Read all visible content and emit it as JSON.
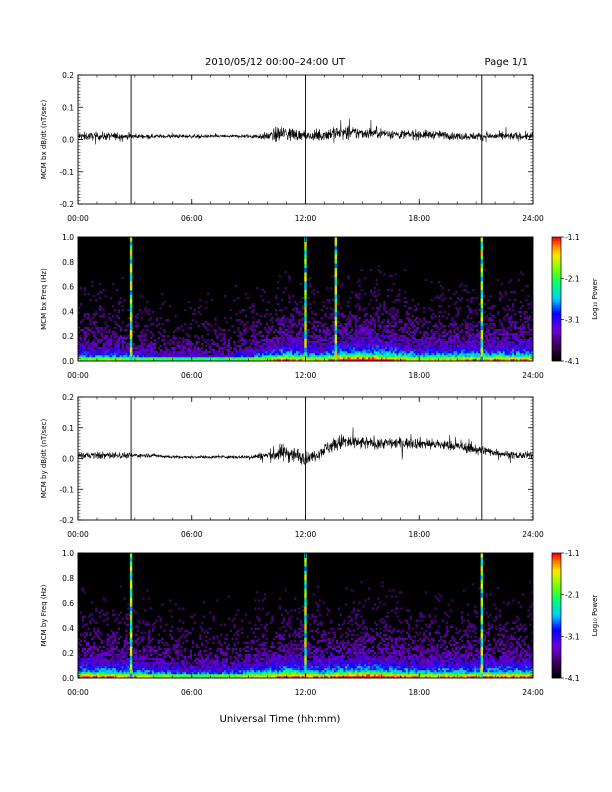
{
  "header": {
    "title": "2010/05/12  00:00–24:00 UT",
    "page": "Page 1/1"
  },
  "xlabel": "Universal Time (hh:mm)",
  "chart_data": [
    {
      "type": "line",
      "ylabel": "MCM bx dB/dt (nT/sec)",
      "xlim": [
        0,
        24
      ],
      "xticks": [
        "00:00",
        "06:00",
        "12:00",
        "18:00",
        "24:00"
      ],
      "ylim": [
        -0.2,
        0.2
      ],
      "yticks": [
        "-0.2",
        "-0.1",
        "0.0",
        "0.1",
        "0.2"
      ],
      "markers_hours": [
        2.8,
        12.0,
        21.3
      ],
      "series": [
        {
          "x": [
            0,
            1,
            2,
            3,
            4,
            5,
            6,
            7,
            8,
            9,
            10,
            10.5,
            11,
            11.5,
            12,
            12.5,
            13,
            13.5,
            14,
            14.5,
            15,
            16,
            17,
            18,
            19,
            20,
            21,
            22,
            23,
            24
          ],
          "y_mean": [
            0.01,
            0.01,
            0.01,
            0.01,
            0.01,
            0.01,
            0.01,
            0.01,
            0.01,
            0.01,
            0.01,
            0.015,
            0.02,
            0.015,
            0.01,
            0.01,
            0.015,
            0.02,
            0.02,
            0.02,
            0.02,
            0.02,
            0.015,
            0.015,
            0.015,
            0.01,
            0.01,
            0.01,
            0.01,
            0.01
          ],
          "y_amp": [
            0.02,
            0.02,
            0.02,
            0.012,
            0.01,
            0.01,
            0.01,
            0.008,
            0.008,
            0.01,
            0.02,
            0.04,
            0.045,
            0.03,
            0.02,
            0.025,
            0.035,
            0.04,
            0.035,
            0.035,
            0.03,
            0.025,
            0.025,
            0.025,
            0.02,
            0.02,
            0.02,
            0.02,
            0.02,
            0.02
          ]
        }
      ]
    },
    {
      "type": "heatmap",
      "ylabel": "MCM bx Freq (Hz)",
      "xlim": [
        0,
        24
      ],
      "xticks": [
        "00:00",
        "06:00",
        "12:00",
        "18:00",
        "24:00"
      ],
      "ylim": [
        0,
        1.0
      ],
      "yticks": [
        "0.0",
        "0.2",
        "0.4",
        "0.6",
        "0.8",
        "1.0"
      ],
      "colorbar": {
        "label": "Log₁₀ Power",
        "range": [
          -4.1,
          -1.1
        ],
        "ticks": [
          "-1.1",
          "-2.1",
          "-3.1",
          "-4.1"
        ]
      },
      "vertical_lines_hours": [
        2.8,
        12.0,
        13.6,
        21.3
      ],
      "activity_profile": {
        "hours": [
          0,
          2,
          4,
          6,
          8,
          10,
          11,
          12,
          13,
          14,
          15,
          16,
          18,
          20,
          22,
          24
        ],
        "level": [
          0.5,
          0.5,
          0.35,
          0.3,
          0.3,
          0.55,
          0.7,
          0.6,
          0.55,
          0.75,
          0.8,
          0.75,
          0.55,
          0.6,
          0.65,
          0.65
        ]
      }
    },
    {
      "type": "line",
      "ylabel": "MCM by dB/dt (nT/sec)",
      "xlim": [
        0,
        24
      ],
      "xticks": [
        "00:00",
        "06:00",
        "12:00",
        "18:00",
        "24:00"
      ],
      "ylim": [
        -0.2,
        0.2
      ],
      "yticks": [
        "-0.2",
        "-0.1",
        "0.0",
        "0.1",
        "0.2"
      ],
      "markers_hours": [
        2.8,
        12.0,
        21.3
      ],
      "series": [
        {
          "x": [
            0,
            1,
            2,
            3,
            4,
            5,
            6,
            7,
            8,
            9,
            10,
            10.5,
            11,
            11.5,
            12,
            12.5,
            13,
            13.5,
            14,
            14.5,
            15,
            16,
            17,
            18,
            19,
            20,
            21,
            22,
            23,
            24
          ],
          "y_mean": [
            0.01,
            0.01,
            0.01,
            0.01,
            0.01,
            0.005,
            0.005,
            0.005,
            0.005,
            0.005,
            0.01,
            0.015,
            0.02,
            0.01,
            0.0,
            0.01,
            0.03,
            0.045,
            0.055,
            0.05,
            0.05,
            0.05,
            0.05,
            0.05,
            0.045,
            0.04,
            0.03,
            0.02,
            0.01,
            0.01
          ],
          "y_amp": [
            0.015,
            0.02,
            0.02,
            0.012,
            0.01,
            0.008,
            0.008,
            0.008,
            0.008,
            0.01,
            0.025,
            0.045,
            0.05,
            0.045,
            0.03,
            0.03,
            0.035,
            0.04,
            0.045,
            0.04,
            0.035,
            0.03,
            0.03,
            0.03,
            0.03,
            0.025,
            0.03,
            0.02,
            0.02,
            0.02
          ]
        }
      ]
    },
    {
      "type": "heatmap",
      "ylabel": "MCM by Freq (Hz)",
      "xlim": [
        0,
        24
      ],
      "xticks": [
        "00:00",
        "06:00",
        "12:00",
        "18:00",
        "24:00"
      ],
      "ylim": [
        0,
        1.0
      ],
      "yticks": [
        "0.0",
        "0.2",
        "0.4",
        "0.6",
        "0.8",
        "1.0"
      ],
      "colorbar": {
        "label": "Log₁₀ Power",
        "range": [
          -4.1,
          -1.1
        ],
        "ticks": [
          "-1.1",
          "-2.1",
          "-3.1",
          "-4.1"
        ]
      },
      "vertical_lines_hours": [
        2.8,
        12.0,
        21.3
      ],
      "activity_profile": {
        "hours": [
          0,
          2,
          4,
          6,
          8,
          10,
          11,
          12,
          13,
          14,
          15,
          16,
          18,
          20,
          22,
          24
        ],
        "level": [
          0.65,
          0.65,
          0.5,
          0.4,
          0.45,
          0.6,
          0.7,
          0.65,
          0.6,
          0.7,
          0.75,
          0.7,
          0.6,
          0.6,
          0.65,
          0.65
        ]
      }
    }
  ]
}
